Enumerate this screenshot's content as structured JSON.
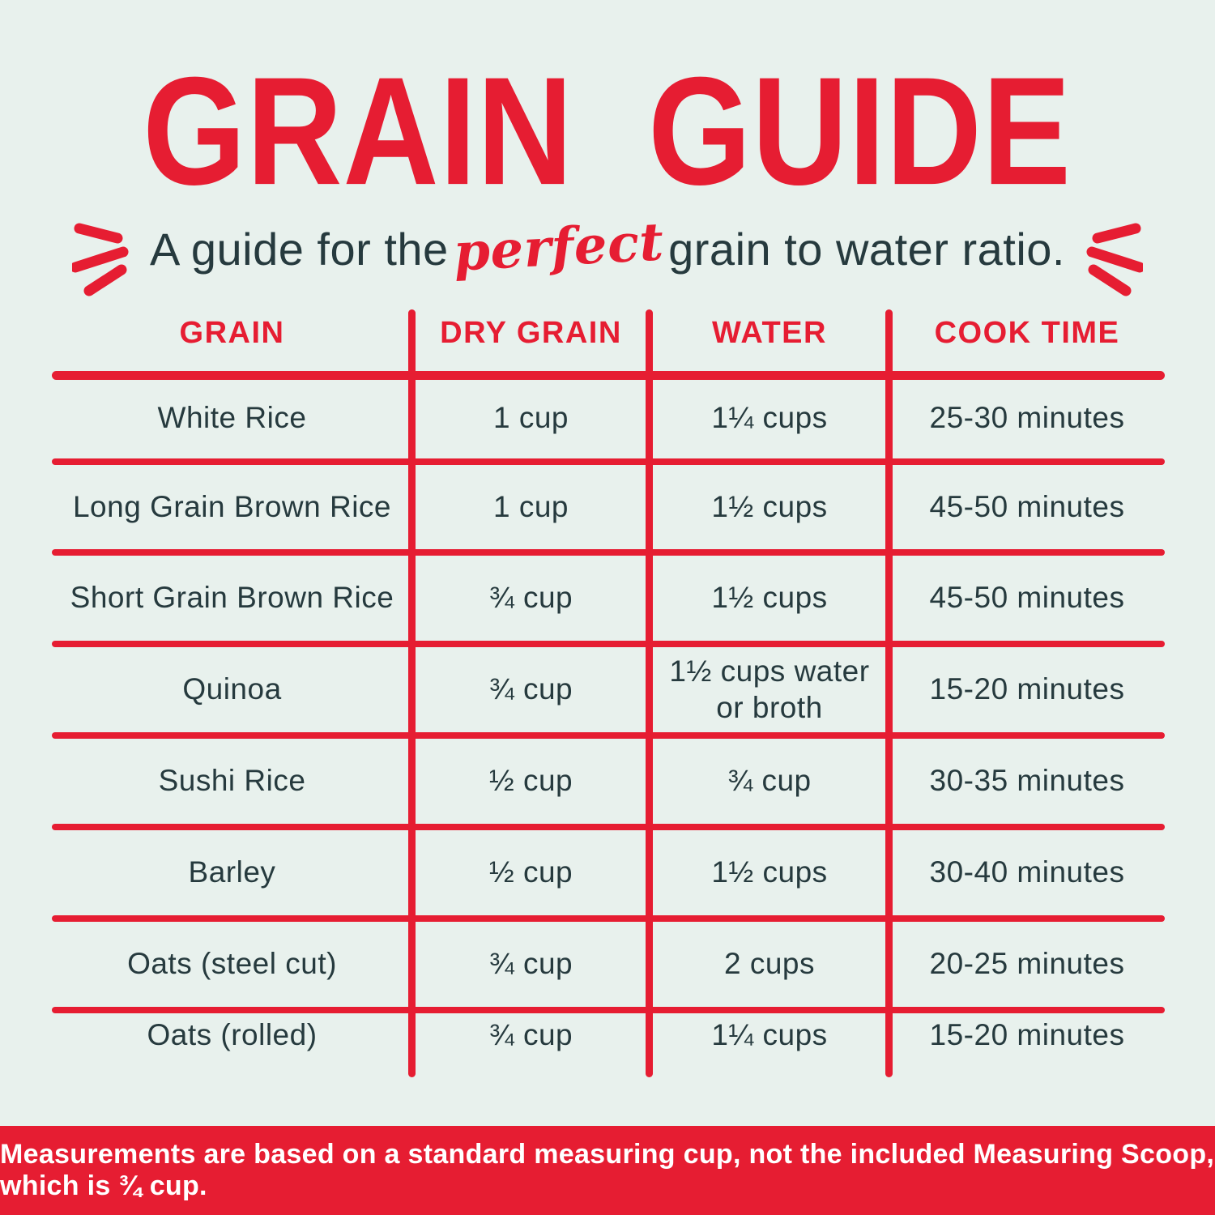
{
  "page": {
    "title": "GRAIN GUIDE",
    "subtitle_prefix": "A guide for the",
    "subtitle_highlight": "perfect",
    "subtitle_suffix": "grain to water ratio.",
    "footer_note": "Measurements are based on a standard measuring cup, not the included Measuring Scoop, which is ¾ cup."
  },
  "colors": {
    "background": "#e8f1ed",
    "accent_red": "#e61d32",
    "text_dark": "#263a3e",
    "footer_text": "#ffffff"
  },
  "icons": {
    "left_burst": "emphasis-burst-left",
    "right_burst": "emphasis-burst-right"
  },
  "table": {
    "headers": [
      "GRAIN",
      "DRY GRAIN",
      "WATER",
      "COOK TIME"
    ],
    "rows": [
      {
        "grain": "White Rice",
        "dry_grain": "1 cup",
        "water": "1¼ cups",
        "cook_time": "25-30 minutes"
      },
      {
        "grain": "Long Grain Brown Rice",
        "dry_grain": "1 cup",
        "water": "1½ cups",
        "cook_time": "45-50 minutes"
      },
      {
        "grain": "Short Grain Brown Rice",
        "dry_grain": "¾ cup",
        "water": "1½ cups",
        "cook_time": "45-50 minutes"
      },
      {
        "grain": "Quinoa",
        "dry_grain": "¾ cup",
        "water": "1½ cups water\nor broth",
        "cook_time": "15-20 minutes"
      },
      {
        "grain": "Sushi Rice",
        "dry_grain": "½ cup",
        "water": "¾ cup",
        "cook_time": "30-35 minutes"
      },
      {
        "grain": "Barley",
        "dry_grain": "½ cup",
        "water": "1½ cups",
        "cook_time": "30-40 minutes"
      },
      {
        "grain": "Oats (steel cut)",
        "dry_grain": "¾ cup",
        "water": "2 cups",
        "cook_time": "20-25 minutes"
      },
      {
        "grain": "Oats (rolled)",
        "dry_grain": "¾ cup",
        "water": "1¼ cups",
        "cook_time": "15-20 minutes"
      }
    ]
  },
  "chart_data": {
    "type": "table",
    "title": "GRAIN GUIDE",
    "subtitle": "A guide for the perfect grain to water ratio.",
    "columns": [
      "GRAIN",
      "DRY GRAIN",
      "WATER",
      "COOK TIME"
    ],
    "rows": [
      [
        "White Rice",
        "1 cup",
        "1¼ cups",
        "25-30 minutes"
      ],
      [
        "Long Grain Brown Rice",
        "1 cup",
        "1½ cups",
        "45-50 minutes"
      ],
      [
        "Short Grain Brown Rice",
        "¾ cup",
        "1½ cups",
        "45-50 minutes"
      ],
      [
        "Quinoa",
        "¾ cup",
        "1½ cups water or broth",
        "15-20 minutes"
      ],
      [
        "Sushi Rice",
        "½ cup",
        "¾ cup",
        "30-35 minutes"
      ],
      [
        "Barley",
        "½ cup",
        "1½ cups",
        "30-40 minutes"
      ],
      [
        "Oats (steel cut)",
        "¾ cup",
        "2 cups",
        "20-25 minutes"
      ],
      [
        "Oats (rolled)",
        "¾ cup",
        "1¼ cups",
        "15-20 minutes"
      ]
    ],
    "footnote": "Measurements are based on a standard measuring cup, not the included Measuring Scoop, which is ¾ cup.",
    "layout_hints": {
      "grid": "red hand-drawn rules between rows and columns",
      "legend": "none"
    }
  }
}
